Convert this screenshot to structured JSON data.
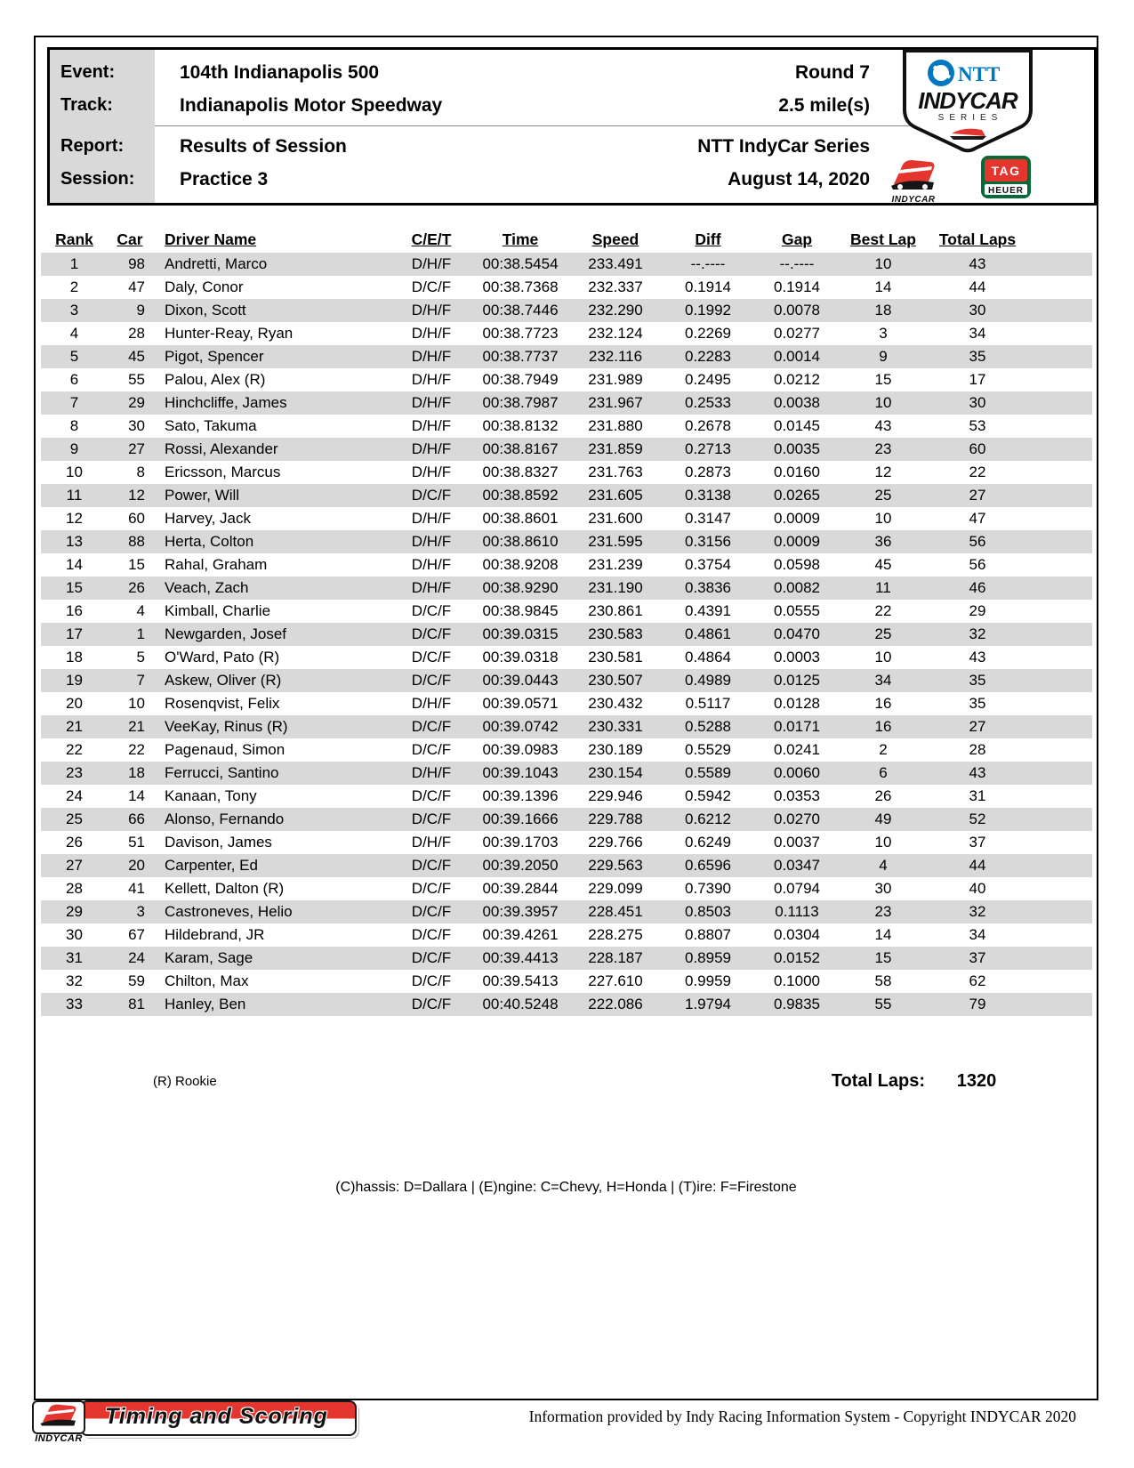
{
  "header": {
    "event_label": "Event:",
    "event_value": "104th Indianapolis 500",
    "track_label": "Track:",
    "track_value": "Indianapolis Motor Speedway",
    "report_label": "Report:",
    "report_value": "Results of Session",
    "session_label": "Session:",
    "session_value": "Practice 3",
    "round": "Round 7",
    "track_length": "2.5 mile(s)",
    "series": "NTT IndyCar Series",
    "date": "August 14, 2020"
  },
  "logos": {
    "ntt": "NTT",
    "indycar": "INDYCAR",
    "series": "SERIES",
    "indycar_small": "INDYCAR",
    "tag": "TAG",
    "heuer": "HEUER"
  },
  "table": {
    "columns": [
      "Rank",
      "Car",
      "Driver Name",
      "C/E/T",
      "Time",
      "Speed",
      "Diff",
      "Gap",
      "Best Lap",
      "Total Laps"
    ],
    "rows": [
      [
        "1",
        "98",
        "Andretti, Marco",
        "D/H/F",
        "00:38.5454",
        "233.491",
        "--.----",
        "--.----",
        "10",
        "43"
      ],
      [
        "2",
        "47",
        "Daly, Conor",
        "D/C/F",
        "00:38.7368",
        "232.337",
        "0.1914",
        "0.1914",
        "14",
        "44"
      ],
      [
        "3",
        "9",
        "Dixon, Scott",
        "D/H/F",
        "00:38.7446",
        "232.290",
        "0.1992",
        "0.0078",
        "18",
        "30"
      ],
      [
        "4",
        "28",
        "Hunter-Reay, Ryan",
        "D/H/F",
        "00:38.7723",
        "232.124",
        "0.2269",
        "0.0277",
        "3",
        "34"
      ],
      [
        "5",
        "45",
        "Pigot, Spencer",
        "D/H/F",
        "00:38.7737",
        "232.116",
        "0.2283",
        "0.0014",
        "9",
        "35"
      ],
      [
        "6",
        "55",
        "Palou, Alex (R)",
        "D/H/F",
        "00:38.7949",
        "231.989",
        "0.2495",
        "0.0212",
        "15",
        "17"
      ],
      [
        "7",
        "29",
        "Hinchcliffe, James",
        "D/H/F",
        "00:38.7987",
        "231.967",
        "0.2533",
        "0.0038",
        "10",
        "30"
      ],
      [
        "8",
        "30",
        "Sato, Takuma",
        "D/H/F",
        "00:38.8132",
        "231.880",
        "0.2678",
        "0.0145",
        "43",
        "53"
      ],
      [
        "9",
        "27",
        "Rossi, Alexander",
        "D/H/F",
        "00:38.8167",
        "231.859",
        "0.2713",
        "0.0035",
        "23",
        "60"
      ],
      [
        "10",
        "8",
        "Ericsson, Marcus",
        "D/H/F",
        "00:38.8327",
        "231.763",
        "0.2873",
        "0.0160",
        "12",
        "22"
      ],
      [
        "11",
        "12",
        "Power, Will",
        "D/C/F",
        "00:38.8592",
        "231.605",
        "0.3138",
        "0.0265",
        "25",
        "27"
      ],
      [
        "12",
        "60",
        "Harvey, Jack",
        "D/H/F",
        "00:38.8601",
        "231.600",
        "0.3147",
        "0.0009",
        "10",
        "47"
      ],
      [
        "13",
        "88",
        "Herta, Colton",
        "D/H/F",
        "00:38.8610",
        "231.595",
        "0.3156",
        "0.0009",
        "36",
        "56"
      ],
      [
        "14",
        "15",
        "Rahal, Graham",
        "D/H/F",
        "00:38.9208",
        "231.239",
        "0.3754",
        "0.0598",
        "45",
        "56"
      ],
      [
        "15",
        "26",
        "Veach, Zach",
        "D/H/F",
        "00:38.9290",
        "231.190",
        "0.3836",
        "0.0082",
        "11",
        "46"
      ],
      [
        "16",
        "4",
        "Kimball, Charlie",
        "D/C/F",
        "00:38.9845",
        "230.861",
        "0.4391",
        "0.0555",
        "22",
        "29"
      ],
      [
        "17",
        "1",
        "Newgarden, Josef",
        "D/C/F",
        "00:39.0315",
        "230.583",
        "0.4861",
        "0.0470",
        "25",
        "32"
      ],
      [
        "18",
        "5",
        "O'Ward, Pato (R)",
        "D/C/F",
        "00:39.0318",
        "230.581",
        "0.4864",
        "0.0003",
        "10",
        "43"
      ],
      [
        "19",
        "7",
        "Askew, Oliver (R)",
        "D/C/F",
        "00:39.0443",
        "230.507",
        "0.4989",
        "0.0125",
        "34",
        "35"
      ],
      [
        "20",
        "10",
        "Rosenqvist, Felix",
        "D/H/F",
        "00:39.0571",
        "230.432",
        "0.5117",
        "0.0128",
        "16",
        "35"
      ],
      [
        "21",
        "21",
        "VeeKay, Rinus (R)",
        "D/C/F",
        "00:39.0742",
        "230.331",
        "0.5288",
        "0.0171",
        "16",
        "27"
      ],
      [
        "22",
        "22",
        "Pagenaud, Simon",
        "D/C/F",
        "00:39.0983",
        "230.189",
        "0.5529",
        "0.0241",
        "2",
        "28"
      ],
      [
        "23",
        "18",
        "Ferrucci, Santino",
        "D/H/F",
        "00:39.1043",
        "230.154",
        "0.5589",
        "0.0060",
        "6",
        "43"
      ],
      [
        "24",
        "14",
        "Kanaan, Tony",
        "D/C/F",
        "00:39.1396",
        "229.946",
        "0.5942",
        "0.0353",
        "26",
        "31"
      ],
      [
        "25",
        "66",
        "Alonso, Fernando",
        "D/C/F",
        "00:39.1666",
        "229.788",
        "0.6212",
        "0.0270",
        "49",
        "52"
      ],
      [
        "26",
        "51",
        "Davison, James",
        "D/H/F",
        "00:39.1703",
        "229.766",
        "0.6249",
        "0.0037",
        "10",
        "37"
      ],
      [
        "27",
        "20",
        "Carpenter, Ed",
        "D/C/F",
        "00:39.2050",
        "229.563",
        "0.6596",
        "0.0347",
        "4",
        "44"
      ],
      [
        "28",
        "41",
        "Kellett, Dalton (R)",
        "D/C/F",
        "00:39.2844",
        "229.099",
        "0.7390",
        "0.0794",
        "30",
        "40"
      ],
      [
        "29",
        "3",
        "Castroneves, Helio",
        "D/C/F",
        "00:39.3957",
        "228.451",
        "0.8503",
        "0.1113",
        "23",
        "32"
      ],
      [
        "30",
        "67",
        "Hildebrand, JR",
        "D/C/F",
        "00:39.4261",
        "228.275",
        "0.8807",
        "0.0304",
        "14",
        "34"
      ],
      [
        "31",
        "24",
        "Karam, Sage",
        "D/C/F",
        "00:39.4413",
        "228.187",
        "0.8959",
        "0.0152",
        "15",
        "37"
      ],
      [
        "32",
        "59",
        "Chilton, Max",
        "D/C/F",
        "00:39.5413",
        "227.610",
        "0.9959",
        "0.1000",
        "58",
        "62"
      ],
      [
        "33",
        "81",
        "Hanley, Ben",
        "D/C/F",
        "00:40.5248",
        "222.086",
        "1.9794",
        "0.9835",
        "55",
        "79"
      ]
    ]
  },
  "notes": {
    "rookie": "(R) Rookie",
    "total_laps_label": "Total Laps:",
    "total_laps_value": "1320",
    "legend": "(C)hassis: D=Dallara |  (E)ngine: C=Chevy, H=Honda  |  (T)ire: F=Firestone"
  },
  "footer": {
    "banner_text": "Timing and Scoring",
    "banner_logo_text": "INDYCAR",
    "copyright": "Information provided by Indy Racing Information System - Copyright INDYCAR 2020"
  },
  "colors": {
    "stripe": "#d9d9d9",
    "label_bg": "#d9d9d9",
    "red": "#e4352e",
    "blue": "#0077bf",
    "green": "#046a38"
  }
}
